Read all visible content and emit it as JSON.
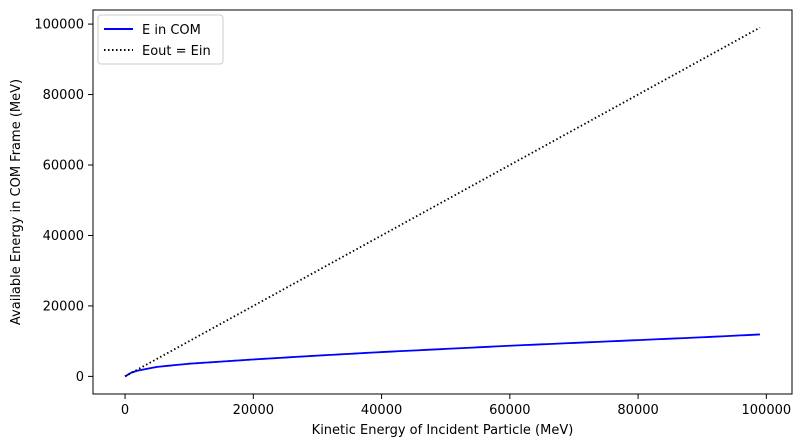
{
  "chart_data": {
    "type": "line",
    "title": "",
    "xlabel": "Kinetic Energy of Incident Particle (MeV)",
    "ylabel": "Available Energy in COM Frame (MeV)",
    "xlim": [
      -5000,
      104000
    ],
    "ylim": [
      -5000,
      104000
    ],
    "x_ticks": [
      0,
      20000,
      40000,
      60000,
      80000,
      100000
    ],
    "y_ticks": [
      0,
      20000,
      40000,
      60000,
      80000,
      100000
    ],
    "x_tick_labels": [
      "0",
      "20000",
      "40000",
      "60000",
      "80000",
      "100000"
    ],
    "y_tick_labels": [
      "0",
      "20000",
      "40000",
      "60000",
      "80000",
      "100000"
    ],
    "grid": false,
    "legend_position": "top-left",
    "series": [
      {
        "name": "E in COM",
        "color": "#0000ff",
        "style": "solid",
        "x": [
          0,
          1000,
          2000,
          5000,
          10000,
          15000,
          20000,
          30000,
          40000,
          50000,
          60000,
          70000,
          80000,
          90000,
          99000
        ],
        "y": [
          0,
          1100,
          1650,
          2700,
          3600,
          4200,
          4800,
          5900,
          6900,
          7800,
          8700,
          9500,
          10300,
          11100,
          11900
        ]
      },
      {
        "name": "Eout = Ein",
        "color": "#000000",
        "style": "dotted",
        "x": [
          0,
          99000
        ],
        "y": [
          0,
          99000
        ]
      }
    ]
  }
}
